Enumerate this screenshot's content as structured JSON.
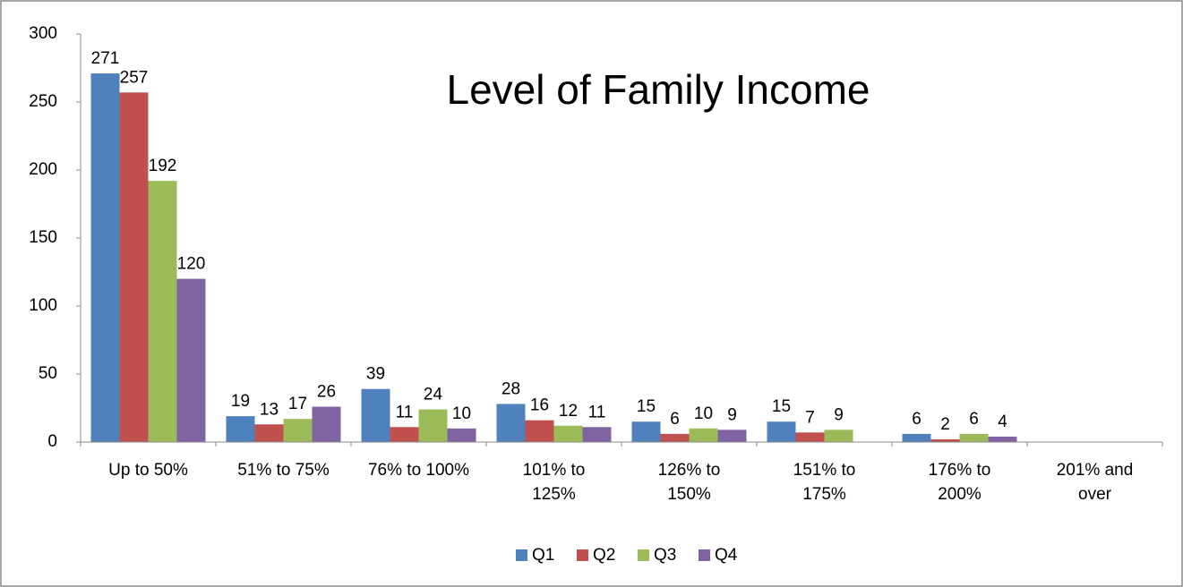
{
  "chart_data": {
    "type": "bar",
    "title": "Level of Family Income",
    "categories": [
      "Up to 50%",
      "51% to 75%",
      "76% to 100%",
      "101% to 125%",
      "126% to 150%",
      "151% to 175%",
      "176% to 200%",
      "201% and over"
    ],
    "series": [
      {
        "name": "Q1",
        "color": "#4f81bd",
        "values": [
          271,
          19,
          39,
          28,
          15,
          15,
          6,
          null
        ]
      },
      {
        "name": "Q2",
        "color": "#c0504d",
        "values": [
          257,
          13,
          11,
          16,
          6,
          7,
          2,
          null
        ]
      },
      {
        "name": "Q3",
        "color": "#9bbb59",
        "values": [
          192,
          17,
          24,
          12,
          10,
          9,
          6,
          null
        ]
      },
      {
        "name": "Q4",
        "color": "#8064a2",
        "values": [
          120,
          26,
          10,
          11,
          9,
          null,
          4,
          null
        ]
      }
    ],
    "ylim": [
      0,
      300
    ],
    "yticks": [
      0,
      50,
      100,
      150,
      200,
      250,
      300
    ],
    "grid": false,
    "legend": "bottom"
  }
}
